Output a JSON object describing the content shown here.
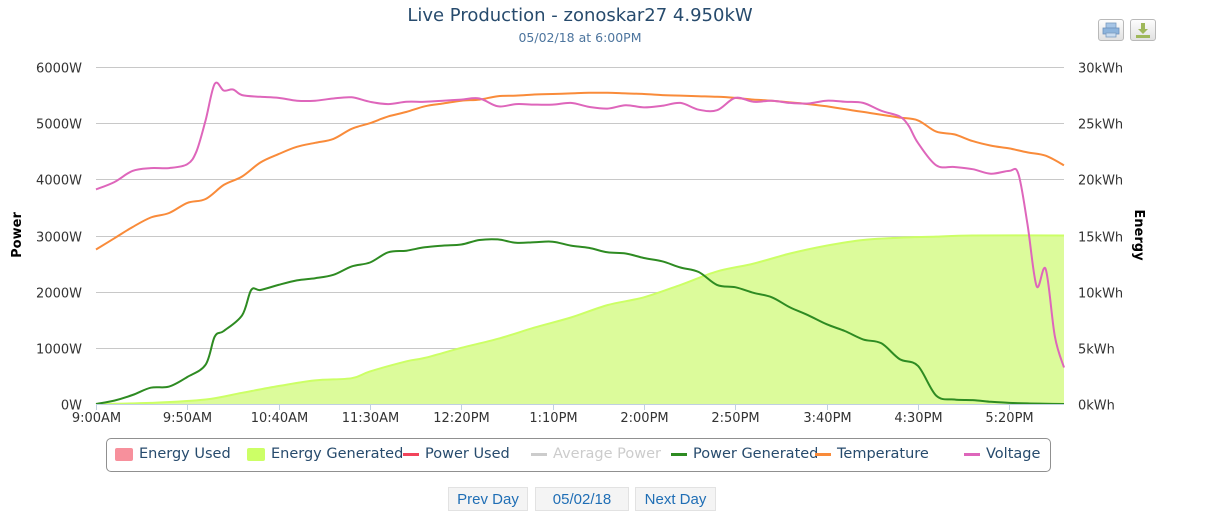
{
  "header": {
    "title": "Live Production - zonoskar27 4.950kW",
    "subtitle": "05/02/18 at 6:00PM"
  },
  "toolbar": {
    "print_icon": "printer-icon",
    "download_icon": "download-icon"
  },
  "colors": {
    "energy_used": "#f7909c",
    "energy_generated": "#ccff66",
    "energy_generated_fill": "#dcfb9b",
    "power_used": "#f2445b",
    "average_power": "#cccccc",
    "power_generated": "#2e8b22",
    "temperature": "#f98b3a",
    "voltage": "#de66bb",
    "grid": "#c8c8c8",
    "axis_text": "#333333"
  },
  "nav": {
    "prev_label": "Prev Day",
    "date_label": "05/02/18",
    "next_label": "Next Day"
  },
  "chart_data": {
    "type": "line",
    "title": "Live Production - zonoskar27 4.950kW",
    "subtitle": "05/02/18 at 6:00PM",
    "xlabel": "",
    "x_unit": "minutes after 9:00AM",
    "x_range": [
      0,
      530
    ],
    "x_ticks": [
      {
        "min": 0,
        "label": "9:00AM"
      },
      {
        "min": 50,
        "label": "9:50AM"
      },
      {
        "min": 100,
        "label": "10:40AM"
      },
      {
        "min": 150,
        "label": "11:30AM"
      },
      {
        "min": 200,
        "label": "12:20PM"
      },
      {
        "min": 250,
        "label": "1:10PM"
      },
      {
        "min": 300,
        "label": "2:00PM"
      },
      {
        "min": 350,
        "label": "2:50PM"
      },
      {
        "min": 400,
        "label": "3:40PM"
      },
      {
        "min": 450,
        "label": "4:30PM"
      },
      {
        "min": 500,
        "label": "5:20PM"
      }
    ],
    "y_left": {
      "label": "Power",
      "range": [
        0,
        6000
      ],
      "ticks": [
        0,
        1000,
        2000,
        3000,
        4000,
        5000,
        6000
      ],
      "tick_labels": [
        "0W",
        "1000W",
        "2000W",
        "3000W",
        "4000W",
        "5000W",
        "6000W"
      ]
    },
    "y_right": {
      "label": "Energy",
      "range": [
        0,
        30
      ],
      "ticks": [
        0,
        5,
        10,
        15,
        20,
        25,
        30
      ],
      "tick_labels": [
        "0kWh",
        "5kWh",
        "10kWh",
        "15kWh",
        "20kWh",
        "25kWh",
        "30kWh"
      ]
    },
    "grid": true,
    "legend_position": "bottom",
    "legend": [
      {
        "name": "Energy Used",
        "kind": "area",
        "color_key": "energy_used",
        "enabled": true
      },
      {
        "name": "Energy Generated",
        "kind": "area",
        "color_key": "energy_generated",
        "enabled": true
      },
      {
        "name": "Power Used",
        "kind": "line",
        "color_key": "power_used",
        "enabled": true
      },
      {
        "name": "Average Power",
        "kind": "line",
        "color_key": "average_power",
        "enabled": false
      },
      {
        "name": "Power Generated",
        "kind": "line",
        "color_key": "power_generated",
        "enabled": true
      },
      {
        "name": "Temperature",
        "kind": "line",
        "color_key": "temperature",
        "enabled": true
      },
      {
        "name": "Voltage",
        "kind": "line",
        "color_key": "voltage",
        "enabled": true
      }
    ],
    "series": [
      {
        "name": "Energy Generated",
        "axis": "right",
        "type": "area",
        "color_key": "energy_generated",
        "x": [
          0,
          30,
          60,
          80,
          100,
          120,
          140,
          150,
          170,
          180,
          200,
          220,
          240,
          260,
          280,
          300,
          320,
          340,
          360,
          380,
          400,
          420,
          440,
          460,
          480,
          530
        ],
        "values": [
          0,
          0.1,
          0.4,
          1.0,
          1.6,
          2.1,
          2.3,
          2.9,
          3.8,
          4.1,
          5.0,
          5.8,
          6.8,
          7.7,
          8.8,
          9.5,
          10.6,
          11.8,
          12.5,
          13.4,
          14.1,
          14.6,
          14.8,
          14.9,
          15.0,
          15.0
        ]
      },
      {
        "name": "Power Generated",
        "axis": "left",
        "type": "line",
        "color_key": "power_generated",
        "x": [
          0,
          10,
          20,
          30,
          40,
          50,
          60,
          65,
          70,
          80,
          85,
          90,
          100,
          110,
          120,
          130,
          140,
          150,
          160,
          170,
          180,
          190,
          200,
          210,
          220,
          230,
          240,
          250,
          260,
          270,
          280,
          290,
          300,
          310,
          320,
          330,
          340,
          350,
          360,
          370,
          380,
          390,
          400,
          410,
          420,
          430,
          440,
          450,
          460,
          470,
          480,
          490,
          500,
          510,
          520,
          530
        ],
        "values": [
          0,
          60,
          160,
          290,
          310,
          480,
          700,
          1200,
          1300,
          1580,
          2030,
          2030,
          2120,
          2200,
          2240,
          2300,
          2450,
          2520,
          2700,
          2730,
          2790,
          2820,
          2840,
          2920,
          2930,
          2870,
          2880,
          2890,
          2820,
          2780,
          2700,
          2680,
          2600,
          2540,
          2430,
          2350,
          2120,
          2080,
          1980,
          1900,
          1720,
          1580,
          1420,
          1300,
          1150,
          1080,
          800,
          680,
          150,
          80,
          70,
          40,
          20,
          10,
          5,
          0
        ]
      },
      {
        "name": "Temperature",
        "axis": "left",
        "type": "line",
        "color_key": "temperature",
        "x": [
          0,
          10,
          20,
          30,
          40,
          50,
          60,
          70,
          80,
          90,
          100,
          110,
          120,
          130,
          140,
          150,
          160,
          170,
          180,
          190,
          200,
          210,
          220,
          230,
          240,
          250,
          260,
          270,
          280,
          290,
          300,
          310,
          320,
          330,
          340,
          350,
          360,
          370,
          380,
          390,
          400,
          410,
          420,
          430,
          440,
          450,
          460,
          470,
          480,
          490,
          500,
          510,
          520,
          530
        ],
        "values": [
          2750,
          2950,
          3150,
          3320,
          3400,
          3580,
          3650,
          3900,
          4050,
          4300,
          4450,
          4580,
          4650,
          4720,
          4900,
          5000,
          5120,
          5200,
          5300,
          5350,
          5400,
          5420,
          5480,
          5490,
          5510,
          5520,
          5530,
          5540,
          5540,
          5530,
          5520,
          5500,
          5490,
          5480,
          5470,
          5450,
          5420,
          5400,
          5370,
          5340,
          5300,
          5250,
          5200,
          5150,
          5100,
          5050,
          4850,
          4800,
          4680,
          4600,
          4550,
          4480,
          4420,
          4250
        ]
      },
      {
        "name": "Voltage",
        "axis": "left",
        "type": "line",
        "color_key": "voltage",
        "x": [
          0,
          10,
          20,
          30,
          40,
          50,
          55,
          60,
          65,
          70,
          75,
          80,
          90,
          100,
          110,
          120,
          130,
          140,
          150,
          160,
          170,
          180,
          190,
          200,
          210,
          220,
          230,
          240,
          250,
          260,
          270,
          280,
          290,
          300,
          310,
          320,
          330,
          340,
          350,
          360,
          370,
          380,
          390,
          400,
          410,
          420,
          430,
          440,
          445,
          450,
          460,
          470,
          480,
          490,
          500,
          505,
          510,
          515,
          520,
          525,
          530
        ],
        "values": [
          3820,
          3950,
          4150,
          4200,
          4200,
          4270,
          4500,
          5050,
          5700,
          5580,
          5600,
          5500,
          5470,
          5450,
          5400,
          5400,
          5440,
          5460,
          5380,
          5340,
          5380,
          5380,
          5400,
          5420,
          5440,
          5300,
          5340,
          5330,
          5330,
          5360,
          5290,
          5260,
          5320,
          5280,
          5310,
          5360,
          5240,
          5230,
          5450,
          5380,
          5400,
          5360,
          5350,
          5400,
          5380,
          5360,
          5220,
          5120,
          4950,
          4650,
          4250,
          4220,
          4180,
          4100,
          4150,
          4100,
          3200,
          2100,
          2400,
          1200,
          650
        ]
      }
    ]
  }
}
